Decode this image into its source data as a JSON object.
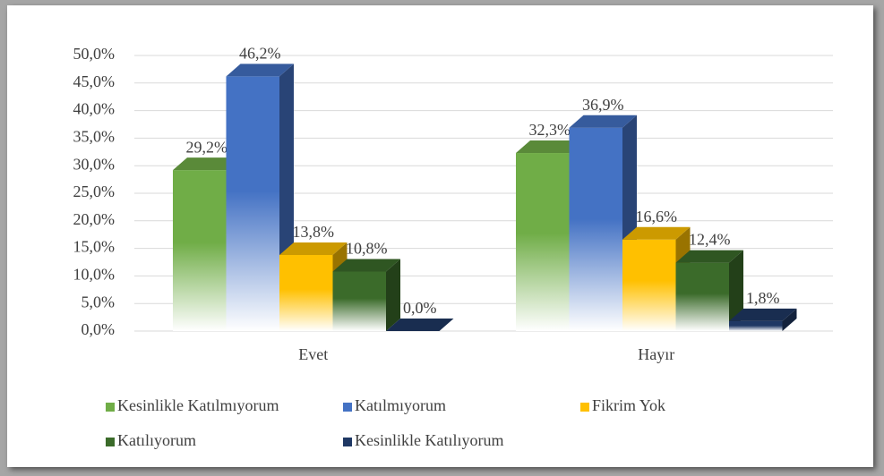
{
  "chart_data": {
    "type": "bar3d",
    "categories": [
      "Evet",
      "Hayır"
    ],
    "series": [
      {
        "name": "Kesinlikle Katılmıyorum",
        "color": "#70ad47",
        "values": [
          29.2,
          32.3
        ],
        "value_labels": [
          "29,2%",
          "32,3%"
        ]
      },
      {
        "name": "Katılmıyorum",
        "color": "#4472c4",
        "values": [
          46.2,
          36.9
        ],
        "value_labels": [
          "46,2%",
          "36,9%"
        ]
      },
      {
        "name": "Fikrim Yok",
        "color": "#ffc000",
        "values": [
          13.8,
          16.6
        ],
        "value_labels": [
          "13,8%",
          "16,6%"
        ]
      },
      {
        "name": "Katılıyorum",
        "color": "#3b6b2a",
        "values": [
          10.8,
          12.4
        ],
        "value_labels": [
          "10,8%",
          "12,4%"
        ]
      },
      {
        "name": "Kesinlikle Katılıyorum",
        "color": "#1f3864",
        "values": [
          0.0,
          1.8
        ],
        "value_labels": [
          "0,0%",
          "1,8%"
        ]
      }
    ],
    "ylim": [
      0,
      50
    ],
    "yticks": [
      {
        "value": 0,
        "label": "0,0%"
      },
      {
        "value": 5,
        "label": "5,0%"
      },
      {
        "value": 10,
        "label": "10,0%"
      },
      {
        "value": 15,
        "label": "15,0%"
      },
      {
        "value": 20,
        "label": "20,0%"
      },
      {
        "value": 25,
        "label": "25,0%"
      },
      {
        "value": 30,
        "label": "30,0%"
      },
      {
        "value": 35,
        "label": "35,0%"
      },
      {
        "value": 40,
        "label": "40,0%"
      },
      {
        "value": 45,
        "label": "45,0%"
      },
      {
        "value": 50,
        "label": "50,0%"
      }
    ],
    "grid": true,
    "legend": "bottom"
  }
}
